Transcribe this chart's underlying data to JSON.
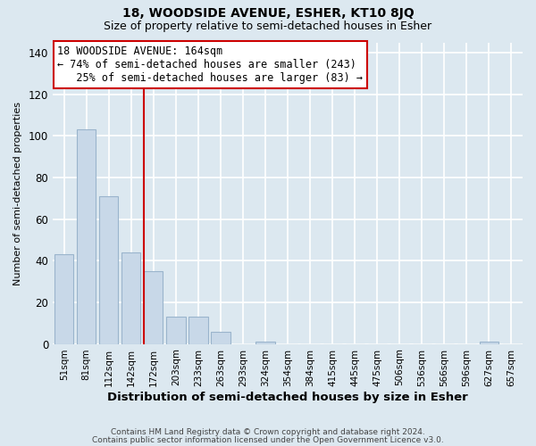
{
  "title": "18, WOODSIDE AVENUE, ESHER, KT10 8JQ",
  "subtitle": "Size of property relative to semi-detached houses in Esher",
  "xlabel": "Distribution of semi-detached houses by size in Esher",
  "ylabel": "Number of semi-detached properties",
  "footnote1": "Contains HM Land Registry data © Crown copyright and database right 2024.",
  "footnote2": "Contains public sector information licensed under the Open Government Licence v3.0.",
  "bar_labels": [
    "51sqm",
    "81sqm",
    "112sqm",
    "142sqm",
    "172sqm",
    "203sqm",
    "233sqm",
    "263sqm",
    "293sqm",
    "324sqm",
    "354sqm",
    "384sqm",
    "415sqm",
    "445sqm",
    "475sqm",
    "506sqm",
    "536sqm",
    "566sqm",
    "596sqm",
    "627sqm",
    "657sqm"
  ],
  "bar_values": [
    43,
    103,
    71,
    44,
    35,
    13,
    13,
    6,
    0,
    1,
    0,
    0,
    0,
    0,
    0,
    0,
    0,
    0,
    0,
    1,
    0
  ],
  "bar_color": "#c8d8e8",
  "bar_edge_color": "#9ab4cc",
  "reference_line_color": "#cc0000",
  "annotation_line1": "18 WOODSIDE AVENUE: 164sqm",
  "annotation_line2": "← 74% of semi-detached houses are smaller (243)",
  "annotation_line3": "   25% of semi-detached houses are larger (83) →",
  "annotation_box_color": "#ffffff",
  "annotation_box_edge_color": "#cc0000",
  "ylim": [
    0,
    145
  ],
  "yticks": [
    0,
    20,
    40,
    60,
    80,
    100,
    120,
    140
  ],
  "background_color": "#dce8f0",
  "plot_background_color": "#dce8f0",
  "grid_color": "#ffffff",
  "title_fontsize": 10,
  "subtitle_fontsize": 9
}
